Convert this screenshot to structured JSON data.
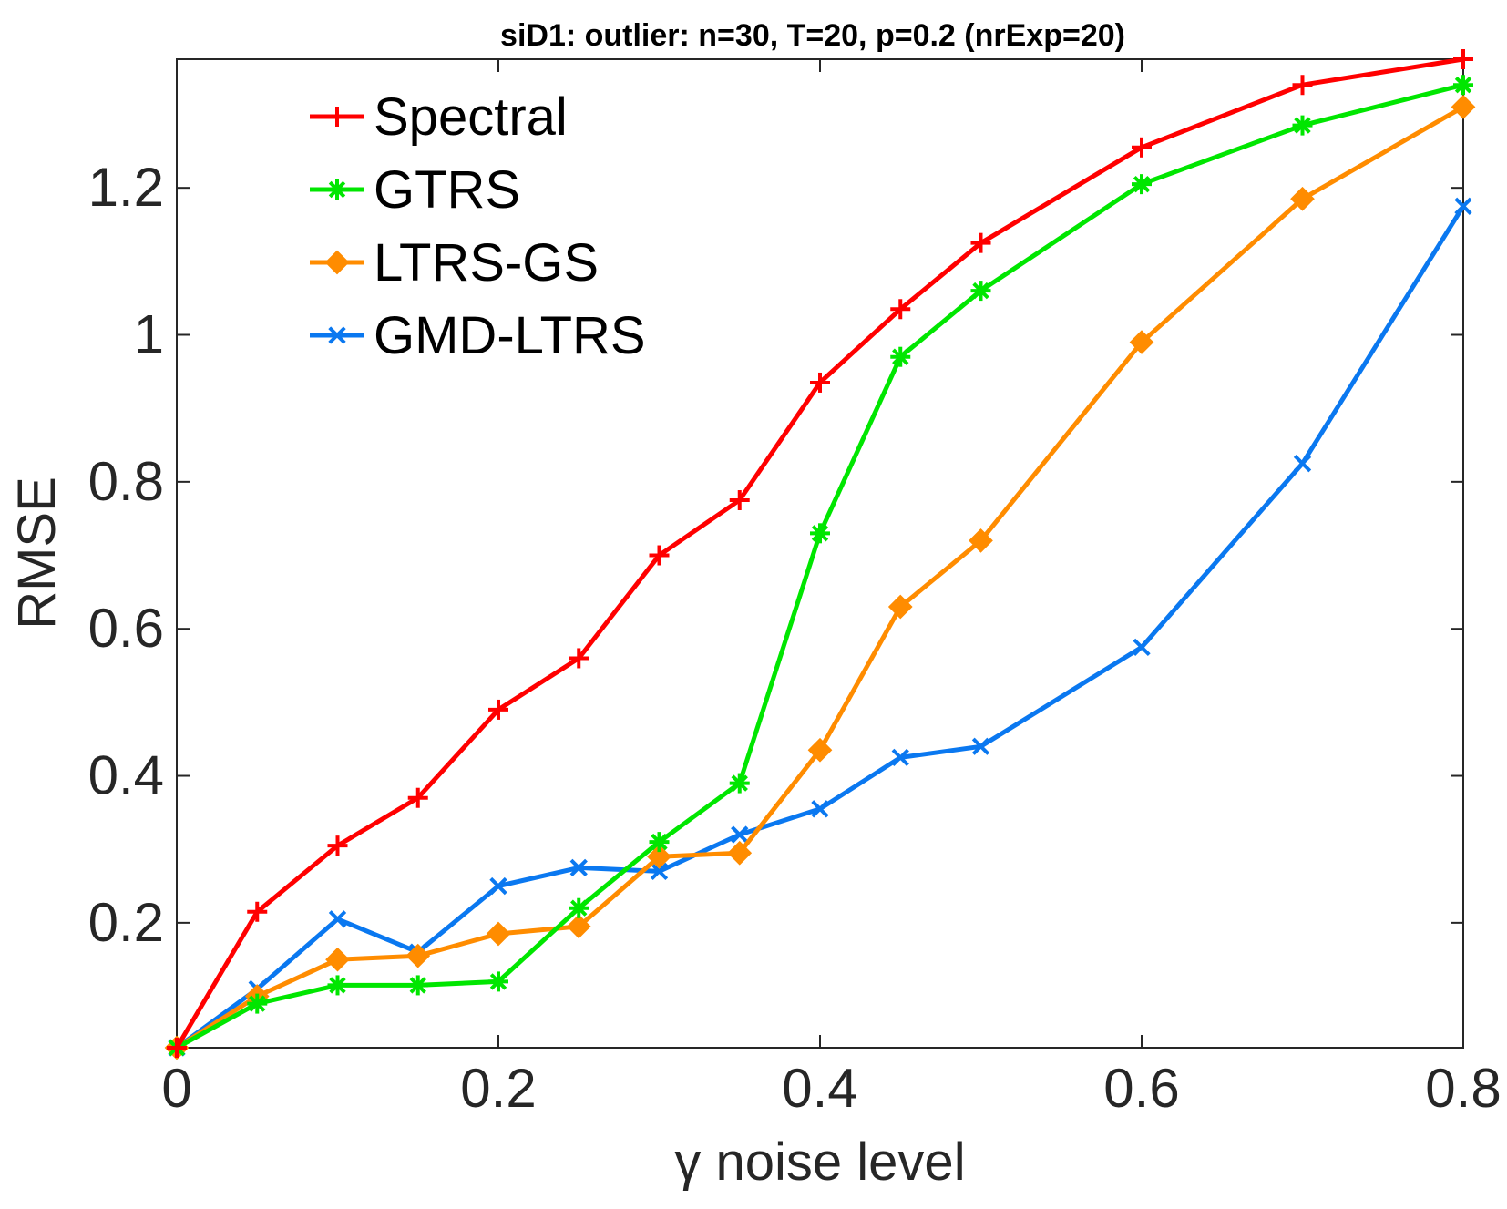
{
  "chart_data": {
    "type": "line",
    "title": "siD1: outlier: n=30, T=20, p=0.2 (nrExp=20)",
    "xlabel": "γ noise level",
    "ylabel": "RMSE",
    "xlim": [
      0,
      0.8
    ],
    "ylim": [
      0.03,
      1.375
    ],
    "xticks": [
      "0",
      "0.2",
      "0.4",
      "0.6",
      "0.8"
    ],
    "yticks": [
      "0.2",
      "0.4",
      "0.6",
      "0.8",
      "1",
      "1.2"
    ],
    "grid": false,
    "legend_position": "top-left",
    "x": [
      0,
      0.05,
      0.1,
      0.15,
      0.2,
      0.25,
      0.3,
      0.35,
      0.4,
      0.45,
      0.5,
      0.6,
      0.7,
      0.8
    ],
    "series": [
      {
        "name": "Spectral",
        "color": "#ff0000",
        "marker": "plus",
        "values": [
          0.03,
          0.215,
          0.305,
          0.37,
          0.49,
          0.56,
          0.7,
          0.775,
          0.935,
          1.035,
          1.125,
          1.255,
          1.34,
          1.375
        ]
      },
      {
        "name": "GTRS",
        "color": "#00e600",
        "marker": "asterisk",
        "values": [
          0.03,
          0.09,
          0.115,
          0.115,
          0.12,
          0.22,
          0.31,
          0.39,
          0.73,
          0.97,
          1.06,
          1.205,
          1.285,
          1.34
        ]
      },
      {
        "name": "LTRS-GS",
        "color": "#ff8c00",
        "marker": "diamond",
        "values": [
          0.03,
          0.1,
          0.15,
          0.155,
          0.185,
          0.195,
          0.29,
          0.295,
          0.435,
          0.63,
          0.72,
          0.99,
          1.185,
          1.31
        ]
      },
      {
        "name": "GMD-LTRS",
        "color": "#0a78f0",
        "marker": "x",
        "values": [
          0.03,
          0.11,
          0.205,
          0.16,
          0.25,
          0.275,
          0.27,
          0.32,
          0.355,
          0.425,
          0.44,
          0.575,
          0.825,
          1.175
        ]
      }
    ]
  }
}
